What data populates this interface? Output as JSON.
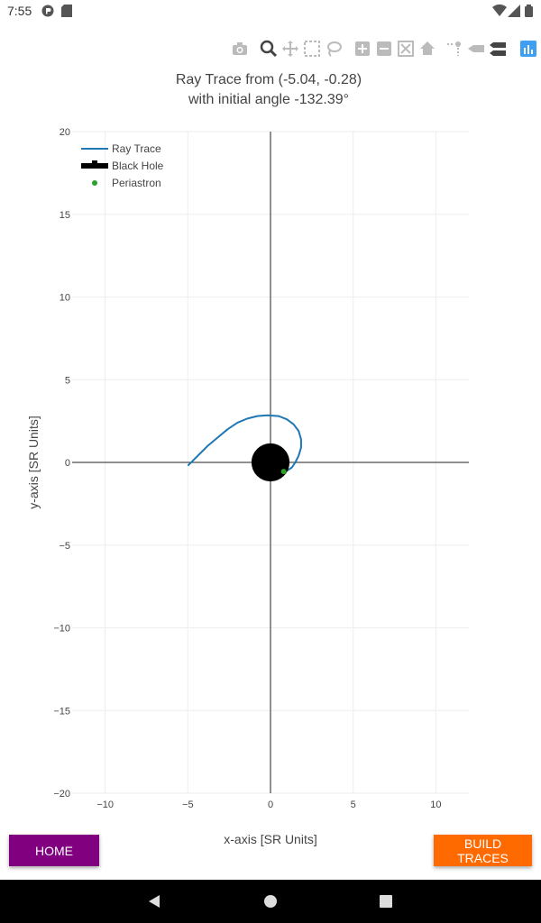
{
  "status_bar": {
    "time": "7:55"
  },
  "toolbar": {
    "icons": [
      "camera-icon",
      "zoom-icon",
      "pan-icon",
      "box-select-icon",
      "lasso-icon",
      "zoom-in-icon",
      "zoom-out-icon",
      "autoscale-icon",
      "reset-axes-icon",
      "spike-lines-icon",
      "hover-closest-icon",
      "hover-compare-icon",
      "plotly-logo-icon"
    ]
  },
  "chart_data": {
    "type": "line",
    "title": "Ray Trace from (-5.04, -0.28)",
    "subtitle": "with initial angle -132.39°",
    "xlabel": "x-axis [SR Units]",
    "ylabel": "y-axis [SR Units]",
    "xlim": [
      -12,
      12
    ],
    "ylim": [
      -20,
      20
    ],
    "xticks": [
      -10,
      -5,
      0,
      5,
      10
    ],
    "yticks": [
      -20,
      -15,
      -10,
      -5,
      0,
      5,
      10,
      15,
      20
    ],
    "xtick_labels": [
      "−10",
      "−5",
      "0",
      "5",
      "10"
    ],
    "ytick_labels": [
      "−20",
      "−15",
      "−10",
      "−5",
      "0",
      "5",
      "10",
      "15",
      "20"
    ],
    "grid": true,
    "legend_position": "top-left",
    "series": [
      {
        "name": "Ray Trace",
        "kind": "line",
        "color": "#1f77b4",
        "x": [
          -5.0,
          -4.6,
          -4.2,
          -3.8,
          -3.2,
          -2.6,
          -2.0,
          -1.4,
          -0.8,
          -0.2,
          0.5,
          1.0,
          1.4,
          1.7,
          1.85,
          1.85,
          1.7,
          1.5,
          1.3,
          1.0,
          0.8
        ],
        "y": [
          -0.2,
          0.2,
          0.6,
          1.0,
          1.5,
          2.0,
          2.4,
          2.65,
          2.8,
          2.85,
          2.8,
          2.6,
          2.3,
          1.9,
          1.4,
          0.9,
          0.4,
          0.0,
          -0.3,
          -0.5,
          -0.55
        ]
      },
      {
        "name": "Black Hole",
        "kind": "marker",
        "color": "#000000",
        "x": [
          0
        ],
        "y": [
          0
        ],
        "radius": 1.15
      },
      {
        "name": "Periastron",
        "kind": "point",
        "color": "#2ca02c",
        "x": [
          0.8
        ],
        "y": [
          -0.55
        ]
      }
    ]
  },
  "buttons": {
    "home": "HOME",
    "build_traces": "BUILD TRACES"
  },
  "colors": {
    "home_button": "#800080",
    "build_button": "#ff6a00",
    "trace": "#1f77b4",
    "periastron": "#2ca02c"
  }
}
